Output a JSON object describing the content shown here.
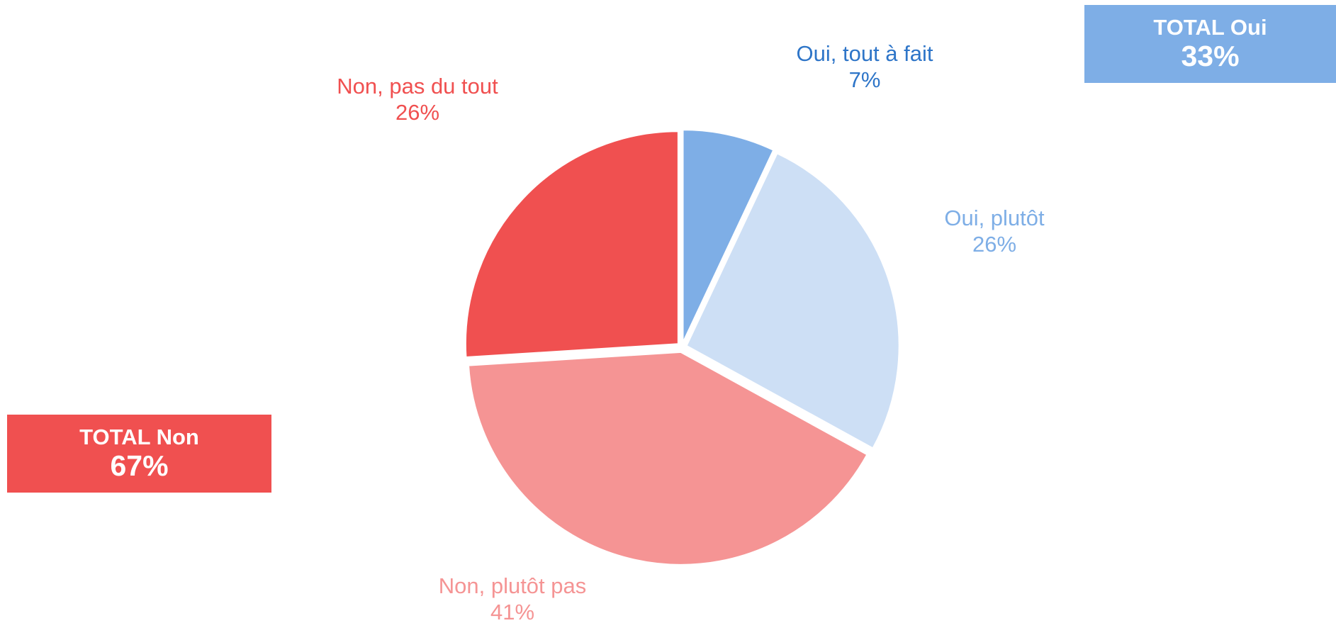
{
  "chart_data": {
    "type": "pie",
    "categories": [
      "Oui, tout à fait",
      "Oui, plutôt",
      "Non, plutôt pas",
      "Non, pas du tout"
    ],
    "values": [
      7,
      26,
      41,
      26
    ],
    "value_labels": [
      "7%",
      "26%",
      "41%",
      "26%"
    ],
    "colors": [
      "#7eaee6",
      "#cddff5",
      "#f59494",
      "#f05050"
    ],
    "label_colors": [
      "#2e75c8",
      "#7eaee6",
      "#f59494",
      "#f05050"
    ],
    "totals": [
      {
        "label": "TOTAL Oui",
        "value_label": "33%",
        "color": "#7eaee6"
      },
      {
        "label": "TOTAL Non",
        "value_label": "67%",
        "color": "#f05050"
      }
    ]
  }
}
